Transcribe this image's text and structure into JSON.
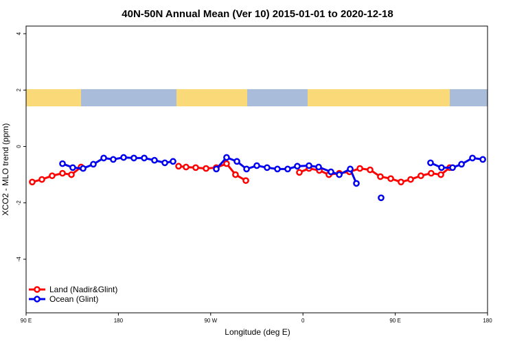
{
  "chart_data": {
    "type": "line",
    "title": "40N-50N Annual Mean (Ver 10)   2015-01-01 to 2020-12-18",
    "xlabel": "Longitude (deg E)",
    "ylabel": "XCO2 - MLO trend (ppm)",
    "xlim": [
      90,
      540
    ],
    "ylim": [
      -5.9,
      4.27
    ],
    "xticks": [
      {
        "value": 90,
        "label": "90 E"
      },
      {
        "value": 180,
        "label": "180"
      },
      {
        "value": 270,
        "label": "90 W"
      },
      {
        "value": 360,
        "label": "0"
      },
      {
        "value": 450,
        "label": "90 E"
      },
      {
        "value": 540,
        "label": "180"
      }
    ],
    "yticks": [
      4,
      2,
      0,
      -2,
      -4
    ],
    "grid": false,
    "legend": "bottom-left",
    "series": [
      {
        "name": "Land (Nadir&Glint)",
        "color": "#ff0000",
        "x": [
          96,
          105.4,
          115.4,
          125.5,
          134.2,
          143.6,
          null,
          238.7,
          246,
          255.4,
          265.5,
          275.5,
          285.5,
          294.2,
          304.3,
          null,
          356.5,
          365.9,
          376,
          385.3,
          395.4,
          405.4,
          415.5,
          425.5,
          435.5,
          445.6,
          455.6,
          465,
          475,
          485,
          494.5,
          503.2
        ],
        "values": [
          -1.26,
          -1.17,
          -1.04,
          -0.95,
          -1.0,
          -0.73,
          null,
          -0.7,
          -0.73,
          -0.75,
          -0.78,
          -0.75,
          -0.61,
          -1.0,
          -1.21,
          null,
          -0.92,
          -0.78,
          -0.85,
          -1.0,
          -0.95,
          -0.9,
          -0.78,
          -0.83,
          -1.07,
          -1.14,
          -1.26,
          -1.17,
          -1.04,
          -0.95,
          -1.0,
          -0.75
        ]
      },
      {
        "name": "Ocean (Glint)",
        "color": "#0000ee",
        "x": [
          125.5,
          135.5,
          145.6,
          155.6,
          165.7,
          175,
          185.1,
          195.1,
          205.2,
          215.2,
          225.3,
          233.3,
          null,
          275.5,
          285.5,
          295.6,
          305,
          315,
          325,
          335.1,
          345.1,
          354.5,
          365.9,
          375.3,
          387.3,
          395.4,
          406.1,
          412.1,
          null,
          436.2,
          null,
          484.4,
          495.1,
          505.9,
          514.6,
          525.3,
          535.4
        ],
        "values": [
          -0.61,
          -0.75,
          -0.78,
          -0.63,
          -0.41,
          -0.46,
          -0.39,
          -0.41,
          -0.41,
          -0.49,
          -0.58,
          -0.53,
          null,
          -0.8,
          -0.39,
          -0.53,
          -0.8,
          -0.68,
          -0.75,
          -0.8,
          -0.8,
          -0.7,
          -0.68,
          -0.73,
          -0.9,
          -1.0,
          -0.8,
          -1.31,
          null,
          -1.82,
          null,
          -0.58,
          -0.75,
          -0.75,
          -0.63,
          -0.41,
          -0.46
        ]
      }
    ]
  }
}
